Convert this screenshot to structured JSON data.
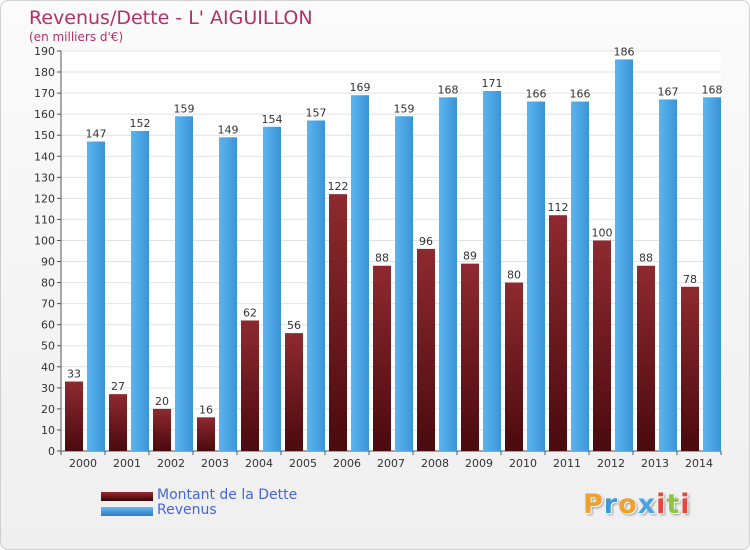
{
  "title": "Revenus/Dette - L' AIGUILLON",
  "subtitle": "(en milliers d'€)",
  "legend": [
    {
      "label": "Montant de la Dette",
      "color": "#7a1c22"
    },
    {
      "label": "Revenus",
      "color": "#4aa4e4"
    }
  ],
  "logo": {
    "letters": [
      "P",
      "r",
      "o",
      "x",
      "i",
      "t",
      "i"
    ],
    "colors": [
      "#f0a030",
      "#3a9ad9",
      "#f0a030",
      "#4aa4e4",
      "#e8453c",
      "#8cc63f",
      "#e8453c"
    ]
  },
  "chart_data": {
    "type": "bar",
    "title": "Revenus/Dette - L' AIGUILLON",
    "subtitle": "(en milliers d'€)",
    "categories": [
      "2000",
      "2001",
      "2002",
      "2003",
      "2004",
      "2005",
      "2006",
      "2007",
      "2008",
      "2009",
      "2010",
      "2011",
      "2012",
      "2013",
      "2014"
    ],
    "series": [
      {
        "name": "Montant de la Dette",
        "values": [
          33,
          27,
          20,
          16,
          62,
          56,
          122,
          88,
          96,
          89,
          80,
          112,
          100,
          88,
          78
        ],
        "color": "#7a1c22"
      },
      {
        "name": "Revenus",
        "values": [
          147,
          152,
          159,
          149,
          154,
          157,
          169,
          159,
          168,
          171,
          166,
          166,
          186,
          167,
          168
        ],
        "color": "#4aa4e4"
      }
    ],
    "ylim": [
      0,
      190
    ],
    "ytick_step": 10,
    "grid": true,
    "legend_position": "bottom-left"
  }
}
